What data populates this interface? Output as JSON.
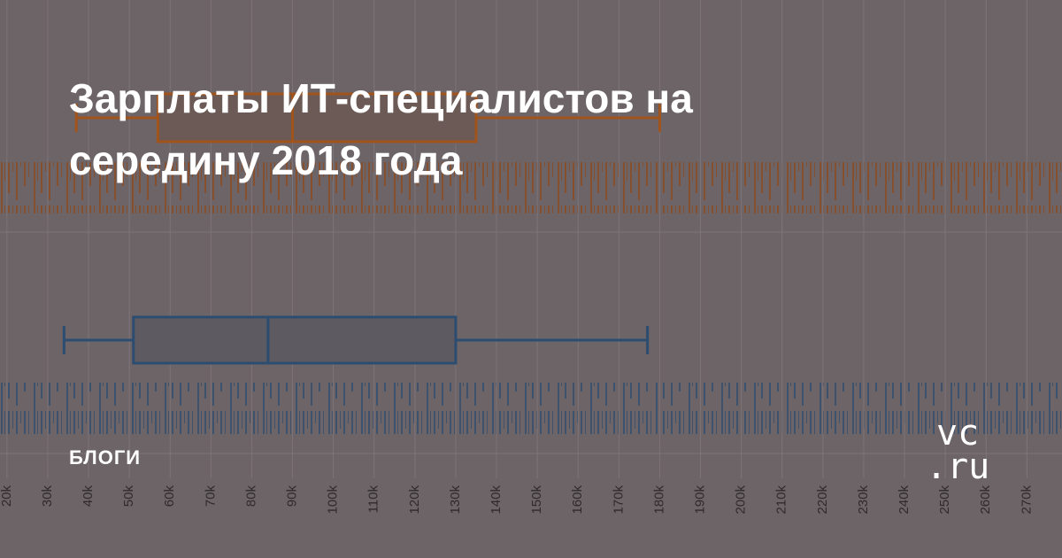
{
  "title": "Зарплаты ИТ-специалистов на середину 2018 года",
  "tag": "БЛОГИ",
  "logo": {
    "top": "vc",
    "bottom": ".ru"
  },
  "chart_data": {
    "type": "box",
    "xlim": [
      18300,
      278600
    ],
    "xticks": [
      {
        "value": 20000,
        "label": "20k"
      },
      {
        "value": 30000,
        "label": "30k"
      },
      {
        "value": 40000,
        "label": "40k"
      },
      {
        "value": 50000,
        "label": "50k"
      },
      {
        "value": 60000,
        "label": "60k"
      },
      {
        "value": 70000,
        "label": "70k"
      },
      {
        "value": 80000,
        "label": "80k"
      },
      {
        "value": 90000,
        "label": "90k"
      },
      {
        "value": 100000,
        "label": "100k"
      },
      {
        "value": 110000,
        "label": "110k"
      },
      {
        "value": 120000,
        "label": "120k"
      },
      {
        "value": 130000,
        "label": "130k"
      },
      {
        "value": 140000,
        "label": "140k"
      },
      {
        "value": 150000,
        "label": "150k"
      },
      {
        "value": 160000,
        "label": "160k"
      },
      {
        "value": 170000,
        "label": "170k"
      },
      {
        "value": 180000,
        "label": "180k"
      },
      {
        "value": 190000,
        "label": "190k"
      },
      {
        "value": 200000,
        "label": "200k"
      },
      {
        "value": 210000,
        "label": "210k"
      },
      {
        "value": 220000,
        "label": "220k"
      },
      {
        "value": 230000,
        "label": "230k"
      },
      {
        "value": 240000,
        "label": "240k"
      },
      {
        "value": 250000,
        "label": "250k"
      },
      {
        "value": 260000,
        "label": "260k"
      },
      {
        "value": 270000,
        "label": "270k"
      }
    ],
    "grid": true,
    "series": [
      {
        "color": "#a0541c",
        "min": 37000,
        "q1": 57000,
        "median": 90000,
        "q3": 135000,
        "max": 180000
      },
      {
        "color": "#2c4d70",
        "min": 34000,
        "q1": 51000,
        "median": 84000,
        "q3": 130000,
        "max": 177000
      }
    ]
  }
}
